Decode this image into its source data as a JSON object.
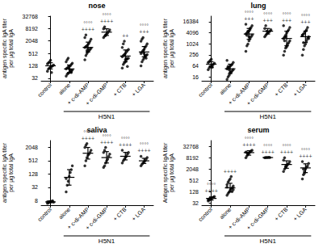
{
  "chart_data": [
    {
      "type": "scatter",
      "title": "nose",
      "ylabel": "antigen specific IgA titer\nper µg total IgA",
      "categories": [
        "control",
        "alone",
        "+ c-di-AMP",
        "+ c-di-GMP",
        "+ CTB",
        "+ LGA"
      ],
      "values": [
        [
          70,
          90,
          100,
          110,
          120,
          128,
          140,
          160,
          180,
          200,
          240,
          60
        ],
        [
          40,
          50,
          55,
          60,
          64,
          70,
          80,
          90,
          100,
          110,
          120,
          128,
          150,
          170,
          200,
          250,
          300,
          90,
          75,
          60
        ],
        [
          250,
          400,
          500,
          600,
          700,
          800,
          900,
          1000,
          1100,
          1200,
          1400,
          1600,
          2000,
          2500,
          3000,
          4000,
          700,
          900
        ],
        [
          3000,
          3500,
          4000,
          4500,
          5000,
          6000,
          7000,
          8000,
          10000,
          3800
        ],
        [
          100,
          150,
          180,
          200,
          250,
          280,
          300,
          350,
          400,
          450,
          500,
          600,
          700,
          800,
          1000,
          1500,
          2000,
          250,
          300,
          120
        ],
        [
          128,
          200,
          250,
          300,
          350,
          400,
          450,
          500,
          600,
          700,
          800,
          1000,
          1200,
          1500,
          2000,
          2500,
          3000,
          500,
          400,
          300
        ]
      ],
      "mean": [
        128,
        90,
        1000,
        5500,
        380,
        600
      ],
      "error_low": [
        90,
        60,
        600,
        3800,
        200,
        350
      ],
      "error_high": [
        180,
        140,
        1800,
        8000,
        750,
        1100
      ],
      "annotations": [
        [],
        [],
        [
          "°°°°",
          "++++"
        ],
        [
          "°°°°",
          "++++"
        ],
        [
          "++"
        ],
        [
          "°°°°",
          "+++"
        ]
      ],
      "group": {
        "label": "H5N1",
        "categories": [
          "alone",
          "+ c-di-AMP",
          "+ c-di-GMP",
          "+ CTB",
          "+ LGA"
        ]
      },
      "ylim": [
        24,
        32768
      ],
      "yticks": [
        32,
        128,
        512,
        2048,
        8192,
        32768
      ],
      "log": "y",
      "grid": false,
      "color": "#000000"
    },
    {
      "type": "scatter",
      "title": "lung",
      "ylabel": "antigen specific IgA titer\nper µg total IgA",
      "categories": [
        "control",
        "alone",
        "+ c-di-AMP",
        "+ c-di-GMP",
        "+ CTB",
        "+ LGA"
      ],
      "values": [
        [
          40,
          50,
          60,
          64,
          70,
          80,
          90,
          100,
          110,
          128,
          150,
          55
        ],
        [
          12,
          16,
          20,
          25,
          30,
          35,
          40,
          45,
          50,
          55,
          64,
          70,
          80,
          100,
          128,
          60,
          40,
          30
        ],
        [
          400,
          800,
          1000,
          1500,
          2000,
          2500,
          3000,
          3500,
          4000,
          4500,
          5000,
          6000,
          8000,
          10000,
          12000,
          3000,
          5000,
          2500,
          7000
        ],
        [
          2500,
          3000,
          3500,
          4000,
          4500,
          5000,
          6000,
          7000,
          10000,
          5000
        ],
        [
          250,
          400,
          600,
          800,
          1000,
          1200,
          1500,
          2000,
          2500,
          3000,
          4000,
          5000,
          6000,
          8000,
          10000,
          1500,
          2500,
          700
        ],
        [
          250,
          500,
          800,
          1000,
          1500,
          2000,
          2500,
          3000,
          3500,
          4000,
          5000,
          6000,
          8000,
          2000,
          3000,
          1200
        ]
      ],
      "mean": [
        80,
        45,
        3500,
        5000,
        2000,
        2500
      ],
      "error_low": [
        55,
        25,
        1800,
        3500,
        800,
        1200
      ],
      "error_high": [
        110,
        80,
        7000,
        7000,
        5000,
        5000
      ],
      "annotations": [
        [],
        [],
        [
          "°°°°",
          "+++"
        ],
        [
          "°°°°",
          "+++"
        ],
        [
          "°°°°",
          "+++"
        ],
        [
          "°°°°",
          "+++"
        ]
      ],
      "group": {
        "label": "H5N1",
        "categories": [
          "alone",
          "+ c-di-AMP",
          "+ c-di-GMP",
          "+ CTB",
          "+ LGA"
        ]
      },
      "ylim": [
        10,
        32768
      ],
      "yticks": [
        16,
        64,
        256,
        1024,
        4096,
        16384
      ],
      "log": "y",
      "grid": false,
      "color": "#000000"
    },
    {
      "type": "scatter",
      "title": "saliva",
      "ylabel": "antigen specific IgA titer\nper µg total IgA",
      "categories": [
        "control",
        "alone",
        "+ c-di-AMP",
        "+ c-di-GMP",
        "+ CTB",
        "+ LGA"
      ],
      "values": [
        [
          6,
          6.5,
          7,
          7,
          7.5,
          8,
          6.8,
          7.2
        ],
        [
          20,
          40,
          60,
          100,
          150,
          200,
          300,
          80
        ],
        [
          300,
          500,
          700,
          900,
          1000,
          1200,
          1500,
          2000,
          2500,
          3000
        ],
        [
          250,
          300,
          400,
          500,
          600,
          800,
          1000,
          1200,
          1500,
          2000
        ],
        [
          400,
          500,
          600,
          700,
          800,
          1000,
          1200,
          1500
        ],
        [
          300,
          350,
          400,
          450,
          500,
          600,
          700,
          800
        ]
      ],
      "mean": [
        7,
        90,
        1100,
        700,
        800,
        500
      ],
      "error_low": [
        6.5,
        40,
        600,
        400,
        550,
        380
      ],
      "error_high": [
        7.5,
        200,
        2000,
        1300,
        1200,
        650
      ],
      "annotations": [
        [],
        [],
        [
          "°°°°",
          "++++"
        ],
        [
          "°°°°",
          "++++"
        ],
        [
          "°°°°",
          "++++"
        ],
        [
          "°°°°",
          "++++"
        ]
      ],
      "group": {
        "label": "H5N1",
        "categories": [
          "alone",
          "+ c-di-AMP",
          "+ c-di-GMP",
          "+ CTB",
          "+ LGA"
        ]
      },
      "ylim": [
        5,
        4096
      ],
      "yticks": [
        8,
        32,
        128,
        512,
        2048
      ],
      "log": "y",
      "grid": false,
      "color": "#000000"
    },
    {
      "type": "scatter",
      "title": "serum",
      "ylabel": "Antigen specific IgA titer\nper µg total IgA",
      "categories": [
        "control",
        "alone",
        "+ c-di-AMP",
        "+ c-di-GMP",
        "+ CTB",
        "+ LGA"
      ],
      "values": [
        [
          40,
          45,
          50,
          55,
          60,
          64,
          70,
          48,
          52,
          58
        ],
        [
          80,
          100,
          120,
          150,
          180,
          200,
          250,
          300,
          400,
          500,
          600,
          800,
          130,
          160,
          220
        ],
        [
          8000,
          10000,
          12000,
          14000,
          16000,
          18000,
          20000,
          16000,
          15000,
          13000
        ],
        [
          8000,
          8192,
          8192,
          8192,
          8500,
          8192
        ],
        [
          1500,
          2000,
          2500,
          3000,
          3500,
          4000,
          5000,
          6000,
          8000,
          2800
        ],
        [
          600,
          1000,
          1500,
          2000,
          2500,
          3000,
          4000,
          5000,
          2000,
          1200
        ]
      ],
      "mean": [
        55,
        200,
        15000,
        8192,
        3500,
        2300
      ],
      "error_low": [
        45,
        120,
        11000,
        8000,
        2200,
        1300
      ],
      "error_high": [
        65,
        350,
        19000,
        8500,
        5500,
        3800
      ],
      "annotations": [
        [
          "°°°°",
          "++++"
        ],
        [
          "++++"
        ],
        [
          "°°°°",
          "++++"
        ],
        [
          "°°°°",
          "++++"
        ],
        [
          "°°°°",
          "++++"
        ],
        [
          "°°°°",
          "++++"
        ]
      ],
      "group": {
        "label": "H5N1",
        "categories": [
          "alone",
          "+ c-di-AMP",
          "+ c-di-GMP",
          "+ CTB",
          "+ LGA"
        ]
      },
      "ylim": [
        24,
        65536
      ],
      "yticks": [
        32,
        128,
        512,
        2048,
        8192,
        32768
      ],
      "log": "y",
      "grid": false,
      "color": "#000000"
    }
  ]
}
